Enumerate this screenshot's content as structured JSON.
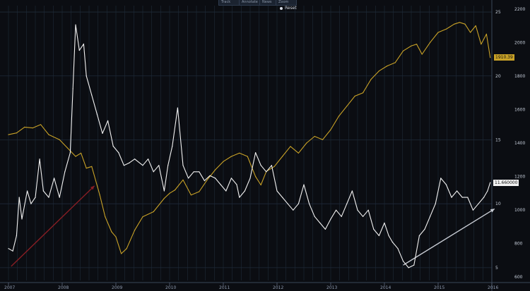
{
  "toolbar": {
    "buttons": [
      "Track",
      "Annotate",
      "News",
      "Zoom"
    ],
    "reset_label": "Reset"
  },
  "chart_data": {
    "type": "line",
    "x_ticks": [
      "2007",
      "2008",
      "2009",
      "2010",
      "2011",
      "2012",
      "2013",
      "2014",
      "2015",
      "2016"
    ],
    "xlim": [
      2007.0,
      2016.0
    ],
    "y_right_outer": {
      "ticks": [
        "25",
        "20",
        "15",
        "10",
        "5"
      ],
      "range": [
        4,
        25.5
      ]
    },
    "y_right_inner": {
      "ticks": [
        "2200",
        "2000",
        "1800",
        "1600",
        "1400",
        "1200",
        "1000",
        "800",
        "600"
      ],
      "range": [
        580,
        2220
      ]
    },
    "last_values": {
      "gold": "1910.39",
      "white": "11.660000"
    },
    "colors": {
      "background": "#0b0d12",
      "grid": "#1f2a38",
      "white_series": "#f2f2f2",
      "gold_series": "#c9a227",
      "label_gold_bg": "#c9a227",
      "label_white_bg": "#f2f2f2",
      "arrow_red": "#8a1e24",
      "arrow_gray": "#c8ccd4"
    },
    "series": [
      {
        "axis": "inner",
        "color": "gold",
        "x": [
          2007.0,
          2007.15,
          2007.3,
          2007.45,
          2007.6,
          2007.75,
          2007.95,
          2008.1,
          2008.25,
          2008.35,
          2008.45,
          2008.55,
          2008.7,
          2008.8,
          2008.92,
          2009.0,
          2009.1,
          2009.2,
          2009.35,
          2009.5,
          2009.7,
          2009.9,
          2010.0,
          2010.1,
          2010.25,
          2010.4,
          2010.55,
          2010.7,
          2010.85,
          2011.0,
          2011.15,
          2011.3,
          2011.45,
          2011.6,
          2011.7,
          2011.8,
          2011.95,
          2012.1,
          2012.25,
          2012.4,
          2012.55,
          2012.7,
          2012.85,
          2013.0,
          2013.15,
          2013.3,
          2013.45,
          2013.6,
          2013.75,
          2013.9,
          2014.05,
          2014.2,
          2014.35,
          2014.5,
          2014.6,
          2014.7,
          2014.85,
          2015.0,
          2015.15,
          2015.3,
          2015.4,
          2015.5,
          2015.6,
          2015.7,
          2015.8,
          2015.9,
          2015.97
        ],
        "values": [
          1450,
          1460,
          1495,
          1490,
          1510,
          1450,
          1420,
          1370,
          1320,
          1340,
          1250,
          1260,
          1090,
          960,
          870,
          840,
          740,
          770,
          880,
          960,
          990,
          1070,
          1100,
          1120,
          1180,
          1090,
          1110,
          1180,
          1240,
          1290,
          1320,
          1340,
          1320,
          1200,
          1150,
          1230,
          1260,
          1320,
          1380,
          1340,
          1400,
          1440,
          1420,
          1480,
          1560,
          1620,
          1680,
          1700,
          1780,
          1830,
          1860,
          1880,
          1950,
          1980,
          1990,
          1930,
          2000,
          2060,
          2080,
          2110,
          2120,
          2110,
          2060,
          2100,
          1990,
          2050,
          1910
        ]
      },
      {
        "axis": "outer",
        "color": "white",
        "x": [
          2007.0,
          2007.08,
          2007.15,
          2007.2,
          2007.25,
          2007.35,
          2007.42,
          2007.5,
          2007.58,
          2007.65,
          2007.75,
          2007.85,
          2007.95,
          2008.05,
          2008.15,
          2008.2,
          2008.25,
          2008.32,
          2008.4,
          2008.45,
          2008.55,
          2008.65,
          2008.75,
          2008.85,
          2008.95,
          2009.05,
          2009.15,
          2009.25,
          2009.35,
          2009.5,
          2009.6,
          2009.7,
          2009.8,
          2009.9,
          2009.97,
          2010.05,
          2010.15,
          2010.25,
          2010.35,
          2010.45,
          2010.55,
          2010.65,
          2010.75,
          2010.85,
          2010.95,
          2011.05,
          2011.15,
          2011.25,
          2011.3,
          2011.4,
          2011.5,
          2011.6,
          2011.7,
          2011.8,
          2011.9,
          2012.0,
          2012.1,
          2012.2,
          2012.3,
          2012.4,
          2012.5,
          2012.6,
          2012.7,
          2012.8,
          2012.9,
          2013.0,
          2013.1,
          2013.2,
          2013.3,
          2013.4,
          2013.5,
          2013.6,
          2013.7,
          2013.8,
          2013.9,
          2014.0,
          2014.08,
          2014.15,
          2014.25,
          2014.35,
          2014.45,
          2014.55,
          2014.65,
          2014.75,
          2014.85,
          2014.95,
          2015.05,
          2015.15,
          2015.25,
          2015.35,
          2015.45,
          2015.55,
          2015.65,
          2015.75,
          2015.85,
          2015.92,
          2015.97
        ],
        "values": [
          6.5,
          6.3,
          7.5,
          10.5,
          8.8,
          11.0,
          10.0,
          10.5,
          13.5,
          11.0,
          10.5,
          12.0,
          10.5,
          12.5,
          14.0,
          19.0,
          24.0,
          22.0,
          22.5,
          20.0,
          18.5,
          17.0,
          15.5,
          16.5,
          14.5,
          14.0,
          13.0,
          13.2,
          13.5,
          13.0,
          13.5,
          12.5,
          13.0,
          11.0,
          13.0,
          14.5,
          17.5,
          13.0,
          12.0,
          12.5,
          12.5,
          11.8,
          12.2,
          12.0,
          11.5,
          11.0,
          12.0,
          11.5,
          10.5,
          11.0,
          12.0,
          14.0,
          13.0,
          12.5,
          13.0,
          11.0,
          10.5,
          10.0,
          9.5,
          10.0,
          11.5,
          10.0,
          9.0,
          8.5,
          8.0,
          8.8,
          9.5,
          9.0,
          10.0,
          11.0,
          9.5,
          9.0,
          9.5,
          8.0,
          7.5,
          8.5,
          7.5,
          7.0,
          6.5,
          5.5,
          5.0,
          5.2,
          7.5,
          8.0,
          9.0,
          10.0,
          12.0,
          11.5,
          10.5,
          11.0,
          10.5,
          10.5,
          9.5,
          10.0,
          10.5,
          11.0,
          11.66
        ]
      }
    ],
    "annotations": [
      {
        "type": "arrow",
        "color": "red",
        "from": {
          "x": 2007.05,
          "y": 5.1
        },
        "to": {
          "x": 2008.6,
          "y": 11.4
        }
      },
      {
        "type": "arrow",
        "color": "gray",
        "from": {
          "x": 2014.35,
          "y": 5.2
        },
        "to": {
          "x": 2016.05,
          "y": 9.6
        }
      }
    ]
  }
}
